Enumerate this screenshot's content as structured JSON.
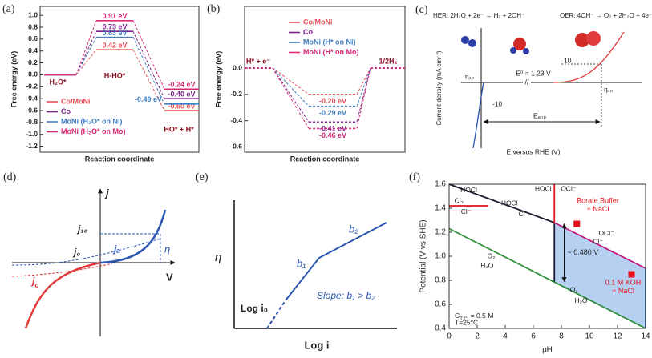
{
  "chart_data": [
    {
      "type": "energy",
      "panel": "(a)",
      "ylabel": "Free energy (eV)",
      "xlabel": "Reaction coordinate",
      "categories": [
        "H₂O*",
        "H-HO*",
        "HO* + H*"
      ],
      "ylim": [
        -1.3,
        1.15
      ],
      "yticks": [
        {
          "value": 1,
          "label": "1.0"
        },
        0.8,
        0.6,
        0.4,
        0.2,
        {
          "value": 0,
          "label": "0.0"
        },
        -0.2,
        -0.4,
        -0.6,
        -0.8,
        {
          "value": -1,
          "label": "-1.0"
        },
        -1.2
      ],
      "series": [
        {
          "name": "Co/MoNi",
          "color": "#e8505b",
          "values": [
            0,
            0.42,
            -0.6
          ],
          "value_labels": [
            null,
            "0.42 eV",
            "-0.60 eV"
          ]
        },
        {
          "name": "Co",
          "color": "#7b1f8a",
          "values": [
            0,
            0.73,
            -0.4
          ],
          "value_labels": [
            null,
            "0.73 eV",
            "-0.40 eV"
          ]
        },
        {
          "name": "MoNi (H₂O* on Ni)",
          "color": "#3f7fc0",
          "values": [
            0,
            0.63,
            -0.49
          ],
          "value_labels": [
            null,
            "0.63 eV",
            "-0.49 eV"
          ]
        },
        {
          "name": "MoNi (H₂O* on Mo)",
          "color": "#d62a74",
          "values": [
            0,
            0.91,
            -0.24
          ],
          "value_labels": [
            null,
            "0.91 eV",
            "-0.24 eV"
          ]
        }
      ]
    },
    {
      "type": "energy",
      "panel": "(b)",
      "ylabel": "Free energy (eV)",
      "xlabel": "Reaction coordinate",
      "dashed_levels": true,
      "categories": [
        "H* + e⁻",
        null,
        "1/2H₂"
      ],
      "ylim": [
        -0.64,
        0.47
      ],
      "yticks": [
        {
          "value": 0,
          "label": "0.0"
        },
        -0.2,
        -0.4,
        -0.6
      ],
      "series": [
        {
          "name": "Co/MoNi",
          "color": "#e8505b",
          "values": [
            0,
            -0.2,
            0
          ],
          "value_labels": [
            null,
            "-0.20 eV",
            null
          ]
        },
        {
          "name": "Co",
          "color": "#7b1f8a",
          "values": [
            0,
            -0.41,
            0
          ],
          "value_labels": [
            null,
            "-0.41 eV",
            null
          ]
        },
        {
          "name": "MoNi (H* on Ni)",
          "color": "#3f7fc0",
          "values": [
            0,
            -0.29,
            0
          ],
          "value_labels": [
            null,
            "-0.29 eV",
            null
          ]
        },
        {
          "name": "MoNi (H* on Mo)",
          "color": "#d62a74",
          "values": [
            0,
            -0.46,
            0
          ],
          "value_labels": [
            null,
            "-0.46 eV",
            null
          ]
        }
      ]
    },
    {
      "type": "pourbaix",
      "panel": "(f)",
      "xlabel": "pH",
      "ylabel": "Potential (V vs SHE)",
      "xlim": [
        0,
        14
      ],
      "ylim": [
        0.4,
        1.6
      ],
      "xticks": [
        0,
        2,
        4,
        6,
        8,
        10,
        12,
        14
      ],
      "yticks": [
        0.4,
        0.6,
        0.8,
        {
          "value": 1,
          "label": "1.0"
        },
        1.2,
        1.4,
        1.6
      ],
      "region": {
        "color": "#a8c8ee",
        "x": [
          7.5,
          14,
          14,
          7.5
        ],
        "y": [
          1.28,
          0.9,
          0.4,
          0.79
        ]
      },
      "lines": [
        {
          "color": "#1a1a2e",
          "x": [
            0,
            7.5
          ],
          "y": [
            1.6,
            1.28
          ]
        },
        {
          "color": "#e3121b",
          "x": [
            0,
            2.8
          ],
          "y": [
            1.42,
            1.42
          ]
        },
        {
          "color": "#e3121b",
          "x": [
            7.5,
            7.5
          ],
          "y": [
            1.6,
            1.28
          ]
        },
        {
          "color": "#1a1a2e",
          "x": [
            7.5,
            7.5
          ],
          "y": [
            1.28,
            0.79
          ]
        },
        {
          "color": "#c2187a",
          "x": [
            7.5,
            14
          ],
          "y": [
            1.28,
            0.9
          ]
        },
        {
          "color": "#2f8f3a",
          "x": [
            0,
            14
          ],
          "y": [
            1.23,
            0.4
          ]
        },
        {
          "color": "#2a5db0",
          "x": [
            14,
            14
          ],
          "y": [
            0.9,
            0.4
          ]
        }
      ],
      "points": {
        "color": "#e3121b",
        "x": [
          9.1,
          13
        ],
        "y": [
          1.27,
          0.85
        ]
      },
      "arrow": {
        "x": 8.2,
        "y": [
          1.27,
          0.79
        ],
        "label": "~ 0.480 V"
      },
      "labels": [
        "HOCl",
        "Cl₂",
        "Cl⁻",
        "HOCl",
        "Cl⁻",
        "HOCl",
        "OCl⁻",
        "OCl⁻",
        "Cl⁻",
        "O₂",
        "H₂O",
        "O₂",
        "H₂O"
      ],
      "annotations": [
        "Borate Buffer",
        "+ NaCl",
        "0.1 M KOH",
        "+ NaCl"
      ],
      "concentration": {
        "main": "C",
        "sub": "T,Cl",
        "tail": " = 0.5 M"
      },
      "temperature": "T=25°C"
    }
  ],
  "panels": {
    "c": {
      "label": "(c)",
      "her": "HER:  2H₂O + 2e⁻ → H₂ + 2OH⁻",
      "oer": "OER:  4OH⁻ → O₂ + 2H₂O + 4e⁻",
      "ylabel": "Current density (mA cm⁻²)",
      "xlabel": "E versus RHE (V)",
      "e0": "E⁰ = 1.23 V",
      "eta_her": "η₁₀",
      "eta_oer": "η₁₀",
      "j_oer": "10",
      "j_her": "-10",
      "break": "//",
      "eapp": "Eₐₚₚ"
    },
    "d": {
      "label": "(d)",
      "y": "j",
      "x": "V",
      "j10": "j₁₀",
      "j0": "j₀",
      "ja": "jₐ",
      "eta": "η",
      "jc": {
        "main": "j",
        "sub": "c"
      }
    },
    "e": {
      "label": "(e)",
      "y": "η",
      "x": "Log i",
      "i0": "Log i₀",
      "b1": "b₁",
      "b2": "b₂",
      "slope": "Slope: b₁ > b₂"
    }
  }
}
